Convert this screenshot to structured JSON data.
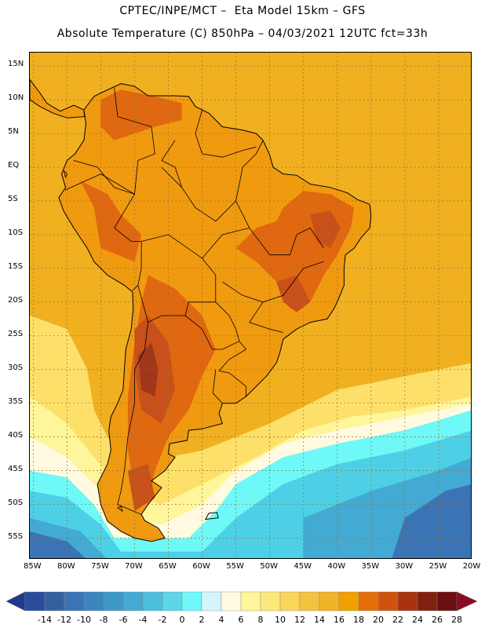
{
  "header": {
    "line1": "CPTEC/INPE/MCT –  Eta Model 15km – GFS",
    "line2": "Absolute Temperature (C) 850hPa – 04/03/2021 12UTC fct=33h"
  },
  "axes": {
    "lat_labels": [
      "15N",
      "10N",
      "5N",
      "EQ",
      "5S",
      "10S",
      "15S",
      "20S",
      "25S",
      "30S",
      "35S",
      "40S",
      "45S",
      "50S",
      "55S"
    ],
    "lat_values": [
      15,
      10,
      5,
      0,
      -5,
      -10,
      -15,
      -20,
      -25,
      -30,
      -35,
      -40,
      -45,
      -50,
      -55
    ],
    "lon_labels": [
      "85W",
      "80W",
      "75W",
      "70W",
      "65W",
      "60W",
      "55W",
      "50W",
      "45W",
      "40W",
      "35W",
      "30W",
      "25W",
      "20W"
    ],
    "lon_values": [
      -85,
      -80,
      -75,
      -70,
      -65,
      -60,
      -55,
      -50,
      -45,
      -40,
      -35,
      -30,
      -25,
      -20
    ],
    "lon_range": [
      -85.5,
      -20
    ],
    "lat_range": [
      -58.2,
      17
    ]
  },
  "colorbar": {
    "labels": [
      "-14",
      "-12",
      "-10",
      "-8",
      "-6",
      "-4",
      "-2",
      "0",
      "2",
      "4",
      "6",
      "8",
      "10",
      "12",
      "14",
      "16",
      "18",
      "20",
      "22",
      "24",
      "26",
      "28"
    ],
    "colors": [
      "#2a4c9c",
      "#35609f",
      "#3a74b4",
      "#3c86c0",
      "#3d98c8",
      "#43aad4",
      "#4dbfdd",
      "#5cd6e8",
      "#6ef8f8",
      "#d2f6fb",
      "#fffae0",
      "#fff59a",
      "#fde87a",
      "#f9d55b",
      "#f4c240",
      "#f1b327",
      "#f0a000",
      "#e4700a",
      "#d0520d",
      "#a8330f",
      "#80200e",
      "#6a1010"
    ],
    "under_color": "#1e3a8c",
    "over_color": "#8b0b24"
  },
  "map_colors": {
    "ocean_warm": "#f0b020",
    "land": "#f09a10",
    "hot": "#e06810",
    "very_hot": "#c8501a",
    "extreme": "#a0361a",
    "yellow": "#fde06a",
    "pale": "#fff59a",
    "cream": "#fffae0",
    "cyan_light": "#d2f6fb",
    "cyan": "#6ef8f8",
    "teal": "#4dd0e6",
    "blue": "#43aad4",
    "deep_blue": "#3a74b4",
    "coast": "#000000",
    "grid": "#9a7030"
  }
}
